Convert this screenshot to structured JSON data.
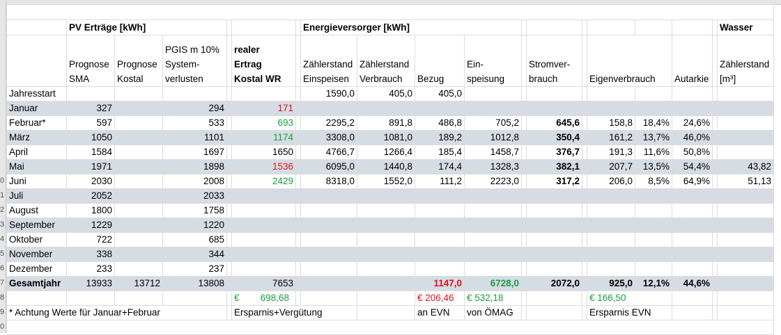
{
  "headers": {
    "pv_section": "PV Erträge [kWh]",
    "energy_section": "Energieversorger [kWh]",
    "water_section": "Wasser",
    "col_prognose_sma": [
      "Prognose",
      "SMA"
    ],
    "col_prognose_kostal": [
      "Prognose",
      "Kostal"
    ],
    "col_pgis": [
      "PGIS m 10%",
      "System-",
      "verlusten"
    ],
    "col_real": [
      "realer",
      "Ertrag",
      "Kostal WR"
    ],
    "col_zs_einspeisen": [
      "Zählerstand",
      "Einspeisen"
    ],
    "col_zs_verbrauch": [
      "Zählerstand",
      "Verbrauch"
    ],
    "col_bezug": "Bezug",
    "col_einspeisung": [
      "Ein-",
      "speisung"
    ],
    "col_stromverbrauch": [
      "Stromver-",
      "brauch"
    ],
    "col_eigenverbrauch": "Eigenverbrauch",
    "col_autarkie": "Autarkie",
    "col_wasser": [
      "Zählerstand",
      "[m³]"
    ]
  },
  "start_row": {
    "label": "Jahresstart",
    "zs_einspeisen": "1590,0",
    "zs_verbrauch": "405,0",
    "bezug": "405,0"
  },
  "months": [
    {
      "name": "Januar",
      "sma": "327",
      "kostal": "",
      "pgis": "294",
      "real": "171",
      "real_color": "red",
      "zs_ein": "",
      "zs_ver": "",
      "bezug": "",
      "einsp": "",
      "strom": "",
      "eigen": "",
      "eigen_pct": "",
      "autarkie": "",
      "wasser": ""
    },
    {
      "name": "Februar*",
      "sma": "597",
      "kostal": "",
      "pgis": "533",
      "real": "693",
      "real_color": "green",
      "zs_ein": "2295,2",
      "zs_ver": "891,8",
      "bezug": "486,8",
      "einsp": "705,2",
      "strom": "645,6",
      "eigen": "158,8",
      "eigen_pct": "18,4%",
      "autarkie": "24,6%",
      "wasser": ""
    },
    {
      "name": "März",
      "sma": "1050",
      "kostal": "",
      "pgis": "1101",
      "real": "1174",
      "real_color": "green",
      "zs_ein": "3308,0",
      "zs_ver": "1081,0",
      "bezug": "189,2",
      "einsp": "1012,8",
      "strom": "350,4",
      "eigen": "161,2",
      "eigen_pct": "13,7%",
      "autarkie": "46,0%",
      "wasser": ""
    },
    {
      "name": "April",
      "sma": "1584",
      "kostal": "",
      "pgis": "1697",
      "real": "1650",
      "real_color": "black",
      "zs_ein": "4766,7",
      "zs_ver": "1266,4",
      "bezug": "185,4",
      "einsp": "1458,7",
      "strom": "376,7",
      "eigen": "191,3",
      "eigen_pct": "11,6%",
      "autarkie": "50,8%",
      "wasser": ""
    },
    {
      "name": "Mai",
      "sma": "1971",
      "kostal": "",
      "pgis": "1898",
      "real": "1536",
      "real_color": "red",
      "zs_ein": "6095,0",
      "zs_ver": "1440,8",
      "bezug": "174,4",
      "einsp": "1328,3",
      "strom": "382,1",
      "eigen": "207,7",
      "eigen_pct": "13,5%",
      "autarkie": "54,4%",
      "wasser": "43,82"
    },
    {
      "name": "Juni",
      "sma": "2030",
      "kostal": "",
      "pgis": "2008",
      "real": "2429",
      "real_color": "green",
      "zs_ein": "8318,0",
      "zs_ver": "1552,0",
      "bezug": "111,2",
      "einsp": "2223,0",
      "strom": "317,2",
      "eigen": "206,0",
      "eigen_pct": "8,5%",
      "autarkie": "64,9%",
      "wasser": "51,13"
    },
    {
      "name": "Juli",
      "sma": "2052",
      "kostal": "",
      "pgis": "2033",
      "real": "",
      "real_color": "black",
      "zs_ein": "",
      "zs_ver": "",
      "bezug": "",
      "einsp": "",
      "strom": "",
      "eigen": "",
      "eigen_pct": "",
      "autarkie": "",
      "wasser": ""
    },
    {
      "name": "August",
      "sma": "1800",
      "kostal": "",
      "pgis": "1758",
      "real": "",
      "real_color": "black",
      "zs_ein": "",
      "zs_ver": "",
      "bezug": "",
      "einsp": "",
      "strom": "",
      "eigen": "",
      "eigen_pct": "",
      "autarkie": "",
      "wasser": ""
    },
    {
      "name": "September",
      "sma": "1229",
      "kostal": "",
      "pgis": "1220",
      "real": "",
      "real_color": "black",
      "zs_ein": "",
      "zs_ver": "",
      "bezug": "",
      "einsp": "",
      "strom": "",
      "eigen": "",
      "eigen_pct": "",
      "autarkie": "",
      "wasser": ""
    },
    {
      "name": "Oktober",
      "sma": "722",
      "kostal": "",
      "pgis": "685",
      "real": "",
      "real_color": "black",
      "zs_ein": "",
      "zs_ver": "",
      "bezug": "",
      "einsp": "",
      "strom": "",
      "eigen": "",
      "eigen_pct": "",
      "autarkie": "",
      "wasser": ""
    },
    {
      "name": "November",
      "sma": "338",
      "kostal": "",
      "pgis": "344",
      "real": "",
      "real_color": "black",
      "zs_ein": "",
      "zs_ver": "",
      "bezug": "",
      "einsp": "",
      "strom": "",
      "eigen": "",
      "eigen_pct": "",
      "autarkie": "",
      "wasser": ""
    },
    {
      "name": "Dezember",
      "sma": "233",
      "kostal": "",
      "pgis": "237",
      "real": "",
      "real_color": "black",
      "zs_ein": "",
      "zs_ver": "",
      "bezug": "",
      "einsp": "",
      "strom": "",
      "eigen": "",
      "eigen_pct": "",
      "autarkie": "",
      "wasser": ""
    }
  ],
  "total_row": {
    "name": "Gesamtjahr",
    "sma": "13933",
    "kostal": "13712",
    "pgis": "13808",
    "real": "7653",
    "bezug": "1147,0",
    "einsp": "6728,0",
    "strom": "2072,0",
    "eigen": "925,0",
    "eigen_pct": "12,1%",
    "autarkie": "44,6%"
  },
  "money_row": {
    "cur1": "€",
    "ersparnis_verguetung": "698,68",
    "evn_cost": "€ 206,46",
    "oemag": "€ 532,18",
    "ersparnis_evn": "€ 166,50"
  },
  "notes_row": {
    "note": "* Achtung Werte für Januar+Februar",
    "ersparnis_label": "Ersparnis+Vergütung",
    "evn_label": "an EVN",
    "oemag_label": "von ÖMAG",
    "ersparnis_evn_label": "Ersparnis EVN"
  },
  "row_numbers": [
    "",
    "",
    "",
    "",
    "",
    "",
    "",
    "",
    "",
    "0",
    "1",
    "2",
    "3",
    "4",
    "5",
    "6",
    "7",
    "8",
    "9",
    "0"
  ],
  "colors": {
    "shade": "#d6dce4",
    "red": "#e2111a",
    "green": "#1a9e3d"
  }
}
